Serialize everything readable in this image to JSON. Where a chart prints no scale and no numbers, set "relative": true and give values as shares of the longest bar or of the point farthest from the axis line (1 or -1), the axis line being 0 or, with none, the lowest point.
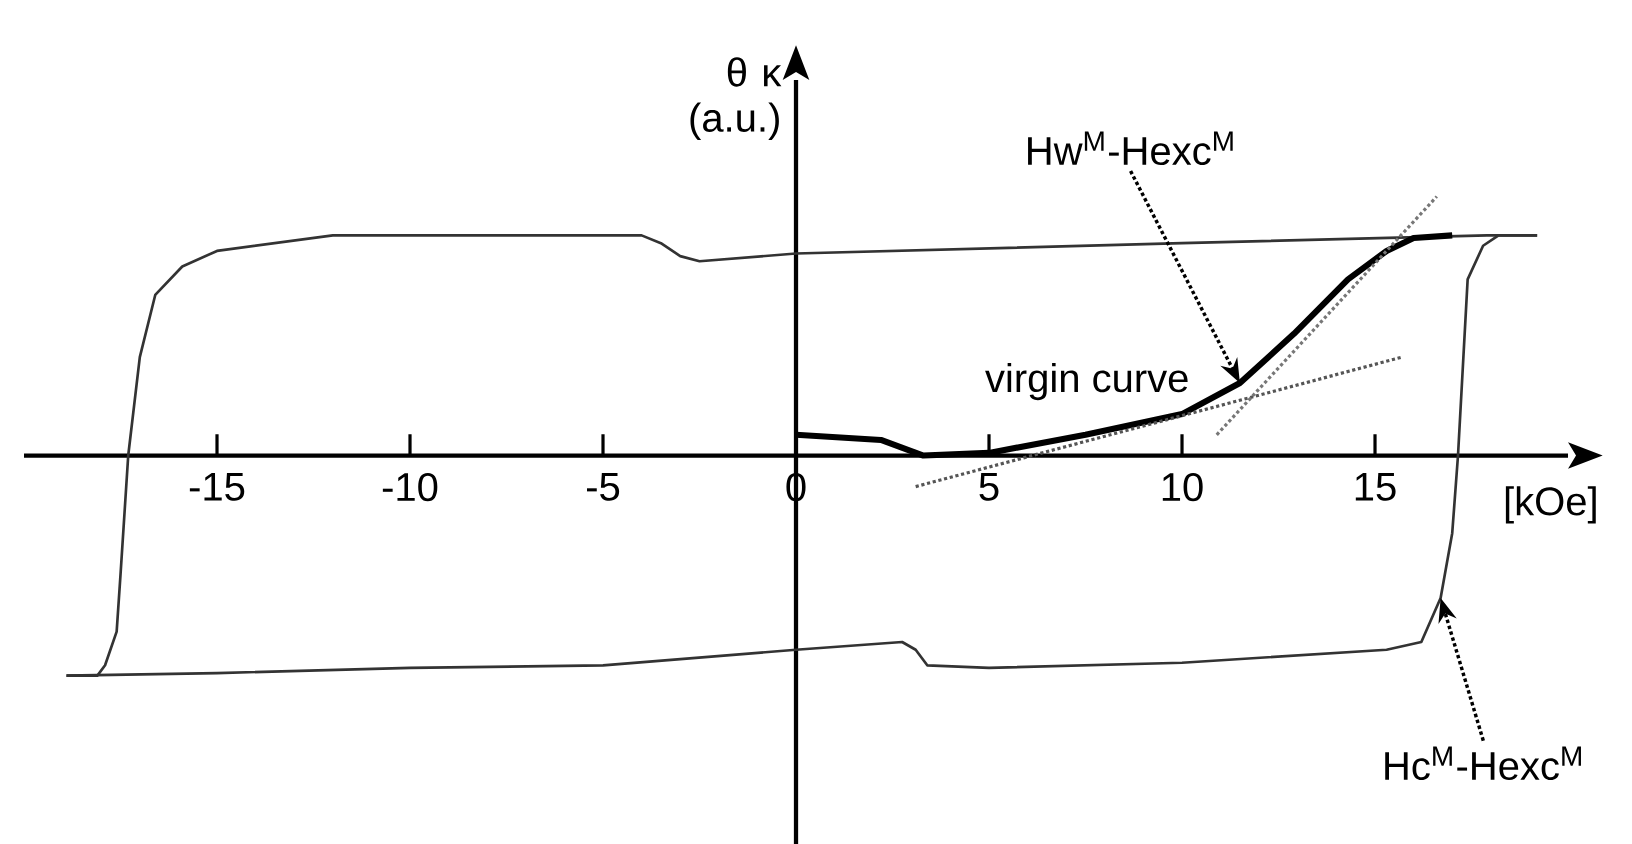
{
  "chart_data": {
    "type": "line",
    "relative": true,
    "xlabel": "[kOe]",
    "ylabel": "θ κ (a.u.)",
    "xlim": [
      -20,
      20
    ],
    "xticks": [
      -15,
      -10,
      -5,
      0,
      5,
      10,
      15
    ],
    "series": [
      {
        "color": "#333333",
        "line_style": "solid",
        "x": [
          -18.9,
          -18.1,
          -17.9,
          -17.6,
          -17.5,
          -17.3,
          -17.0,
          -16.6,
          -15.9,
          -15,
          -12,
          -4,
          -3.5,
          -3.0,
          -2.5,
          0,
          10,
          17.9,
          19.2
        ],
        "values": [
          -0.85,
          -0.85,
          -0.81,
          -0.68,
          -0.46,
          0,
          0.38,
          0.62,
          0.73,
          0.79,
          0.85,
          0.85,
          0.82,
          0.77,
          0.75,
          0.78,
          0.82,
          0.85,
          0.85
        ]
      },
      {
        "color": "#333333",
        "line_style": "solid",
        "x": [
          -18.9,
          -15,
          -10,
          -5,
          0,
          2.75,
          3.1,
          3.4,
          5,
          10,
          15.3,
          16.2,
          16.7,
          17.0,
          17.15,
          17.4,
          17.8,
          18.2,
          19.2
        ],
        "values": [
          -0.85,
          -0.84,
          -0.82,
          -0.81,
          -0.75,
          -0.72,
          -0.75,
          -0.81,
          -0.82,
          -0.8,
          -0.75,
          -0.72,
          -0.55,
          -0.3,
          0,
          0.68,
          0.81,
          0.85,
          0.85
        ]
      },
      {
        "name": "virgin curve",
        "color": "#000000",
        "line_style": "solid",
        "x": [
          0,
          2.2,
          3.3,
          5,
          7.5,
          10,
          11.5,
          12.9,
          14.3,
          15.3,
          16,
          17.0
        ],
        "values": [
          0.08,
          0.06,
          0,
          0.01,
          0.08,
          0.16,
          0.28,
          0.47,
          0.68,
          0.79,
          0.84,
          0.85
        ]
      },
      {
        "color": "#555555",
        "line_style": "dotted",
        "x": [
          3.1,
          15.7
        ],
        "values": [
          -0.12,
          0.38
        ]
      },
      {
        "color": "#777777",
        "line_style": "dotted",
        "x": [
          10.9,
          16.6
        ],
        "values": [
          0.08,
          1.0
        ]
      }
    ],
    "annotations": [
      {
        "text": "Hw$^{M}$-Hexc$^{M}$",
        "x": 11.5,
        "y": 0.28
      },
      {
        "text": "Hc$^{M}$-Hexc$^{M}$",
        "x": 16.7,
        "y": -0.55
      }
    ]
  }
}
